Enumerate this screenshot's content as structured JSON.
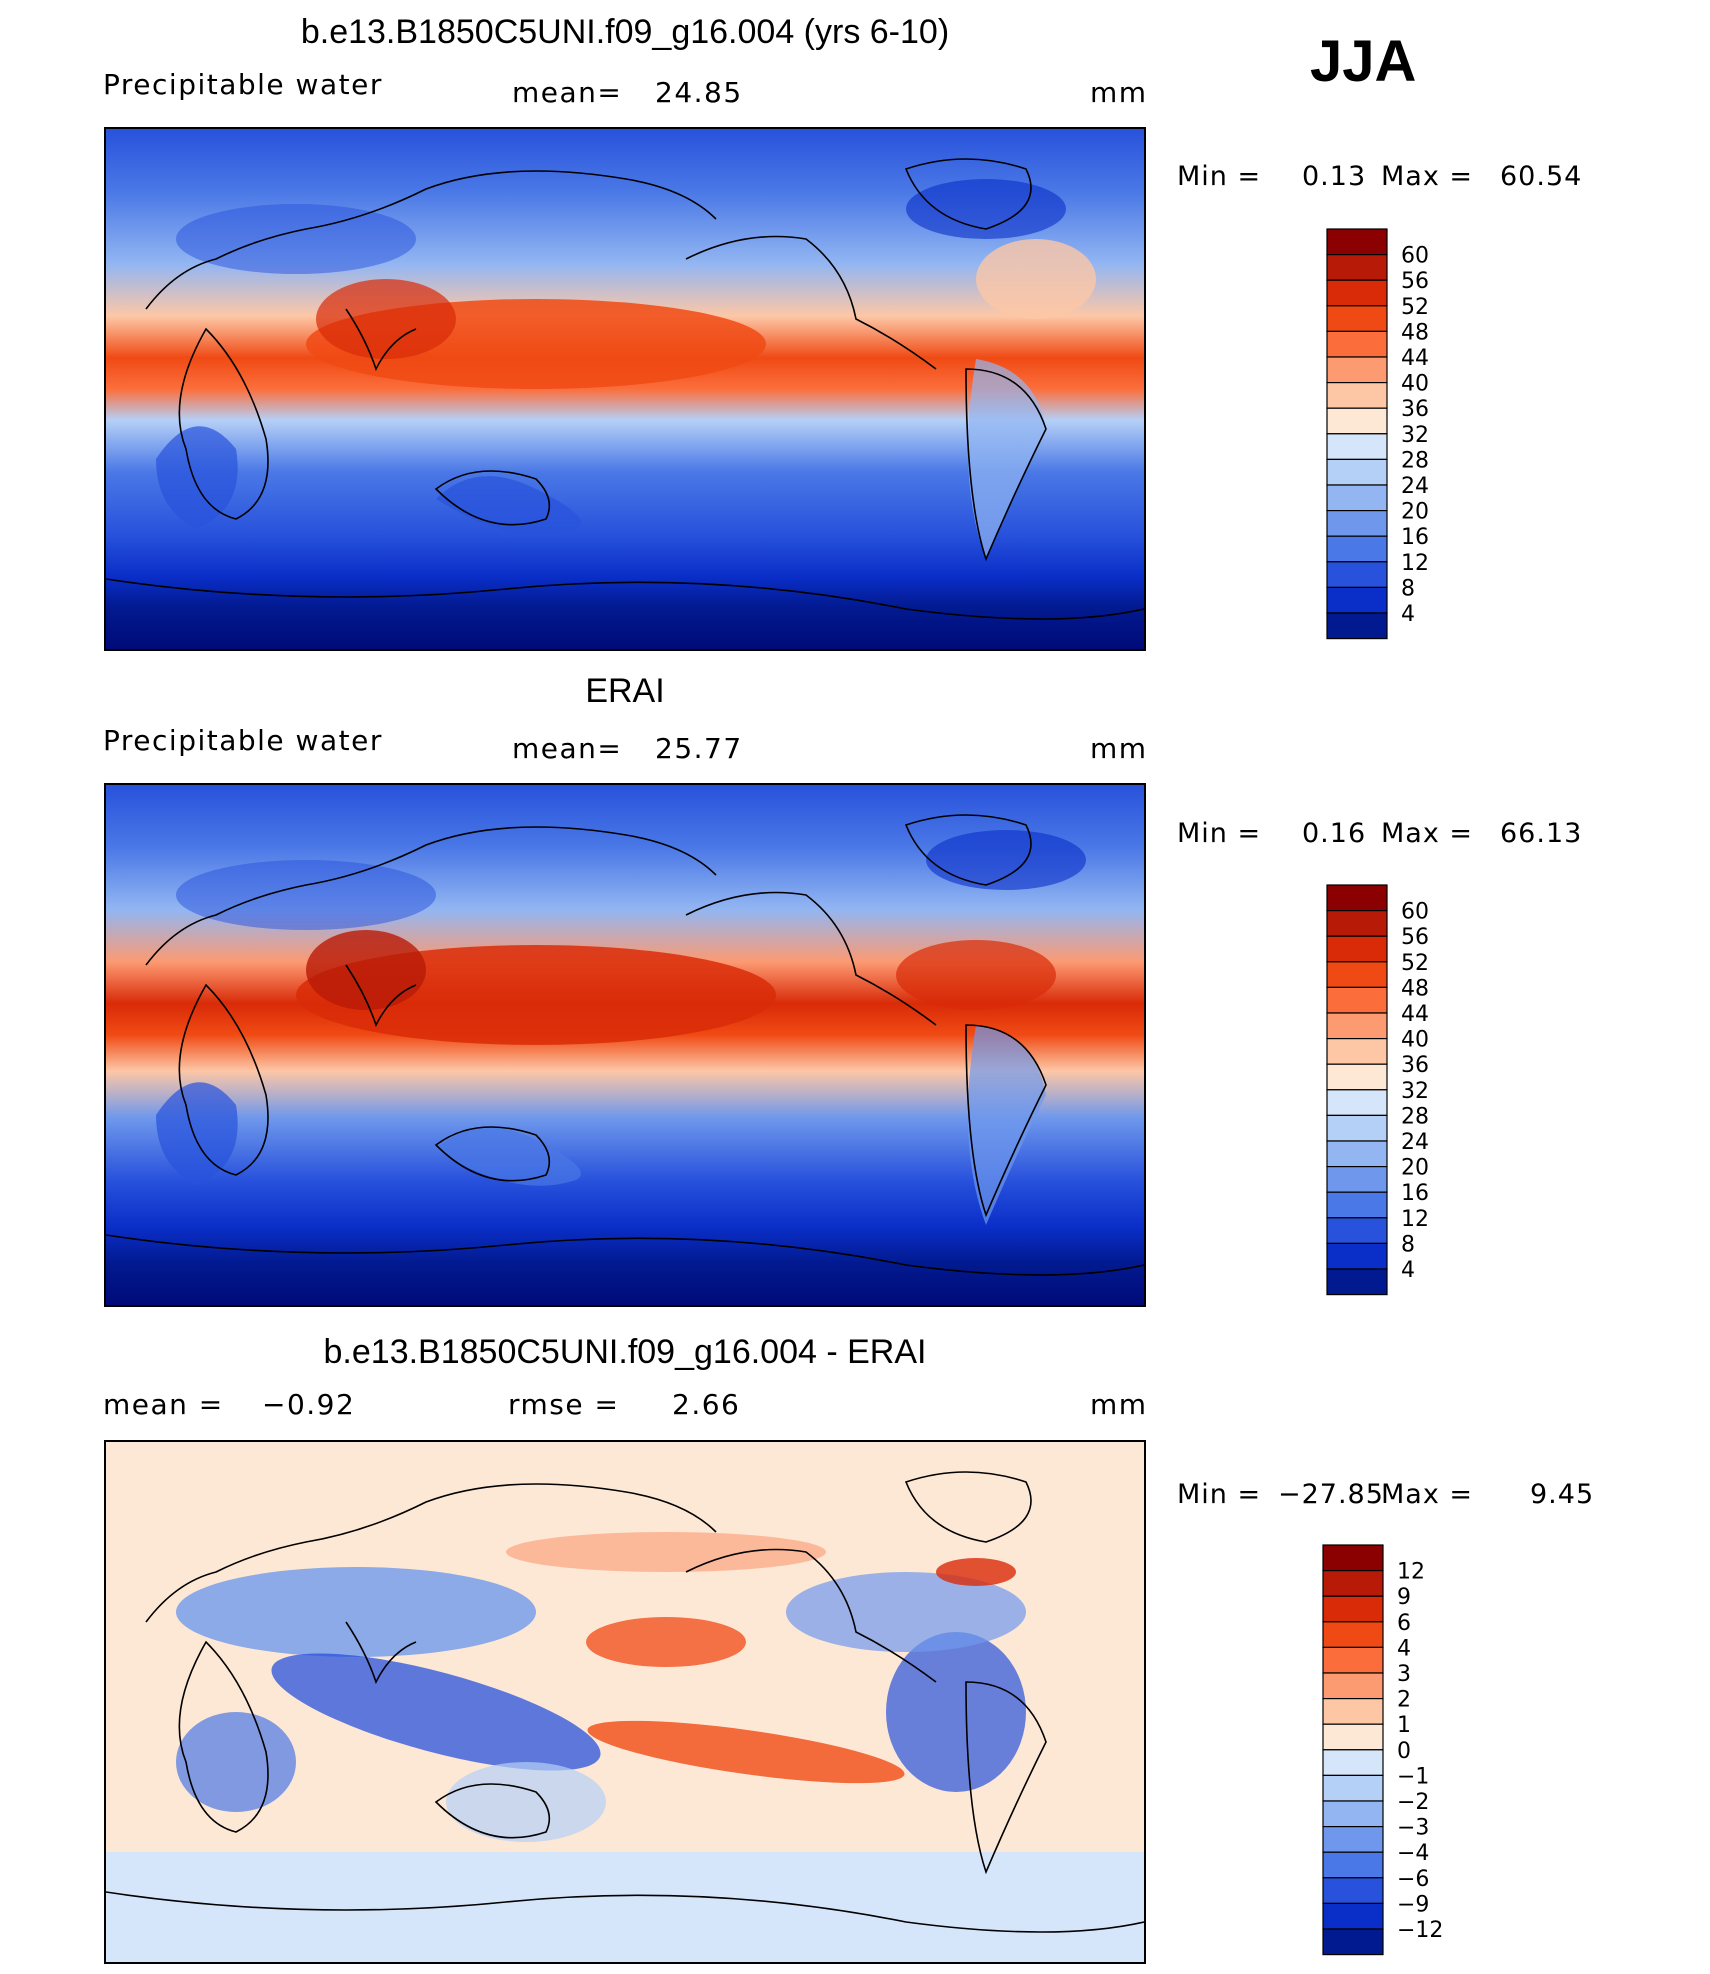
{
  "season": "JJA",
  "chart_data": [
    {
      "type": "heatmap",
      "title": "b.e13.B1850C5UNI.f09_g16.004 (yrs 6-10)",
      "variable": "Precipitable water",
      "stat1_label": "mean=",
      "stat1_value": "24.85",
      "stat2_label": "",
      "stat2_value": "",
      "units": "mm",
      "min_label": "Min =",
      "min_value": "0.13",
      "max_label": "Max =",
      "max_value": "60.54",
      "colorbar_levels": [
        "60",
        "56",
        "52",
        "48",
        "44",
        "40",
        "36",
        "32",
        "28",
        "24",
        "20",
        "16",
        "12",
        "8",
        "4"
      ],
      "colorbar_colors": [
        "#8b0000",
        "#b81a08",
        "#d92b08",
        "#f04a14",
        "#fb6e3c",
        "#fc9a72",
        "#fdc7a6",
        "#fde8d6",
        "#d6e6fa",
        "#b5d0f7",
        "#93b6f2",
        "#6f98ec",
        "#4a78e6",
        "#2852dc",
        "#0a2ec8",
        "#021a90"
      ]
    },
    {
      "type": "heatmap",
      "title": "ERAI",
      "variable": "Precipitable water",
      "stat1_label": "mean=",
      "stat1_value": "25.77",
      "stat2_label": "",
      "stat2_value": "",
      "units": "mm",
      "min_label": "Min =",
      "min_value": "0.16",
      "max_label": "Max =",
      "max_value": "66.13",
      "colorbar_levels": [
        "60",
        "56",
        "52",
        "48",
        "44",
        "40",
        "36",
        "32",
        "28",
        "24",
        "20",
        "16",
        "12",
        "8",
        "4"
      ],
      "colorbar_colors": [
        "#8b0000",
        "#b81a08",
        "#d92b08",
        "#f04a14",
        "#fb6e3c",
        "#fc9a72",
        "#fdc7a6",
        "#fde8d6",
        "#d6e6fa",
        "#b5d0f7",
        "#93b6f2",
        "#6f98ec",
        "#4a78e6",
        "#2852dc",
        "#0a2ec8",
        "#021a90"
      ]
    },
    {
      "type": "heatmap",
      "title": "b.e13.B1850C5UNI.f09_g16.004 - ERAI",
      "variable": "",
      "stat1_label": "mean =",
      "stat1_value": "−0.92",
      "stat2_label": "rmse =",
      "stat2_value": "2.66",
      "units": "mm",
      "min_label": "Min =",
      "min_value": "−27.85",
      "max_label": "Max =",
      "max_value": "9.45",
      "colorbar_levels": [
        "12",
        "9",
        "6",
        "4",
        "3",
        "2",
        "1",
        "0",
        "−1",
        "−2",
        "−3",
        "−4",
        "−6",
        "−9",
        "−12"
      ],
      "colorbar_colors": [
        "#8b0000",
        "#b81a08",
        "#d92b08",
        "#f04a14",
        "#fb6e3c",
        "#fc9a72",
        "#fdc7a6",
        "#fde8d6",
        "#d6e6fa",
        "#b5d0f7",
        "#93b6f2",
        "#6f98ec",
        "#4a78e6",
        "#2852dc",
        "#0a2ec8",
        "#021a90"
      ]
    }
  ]
}
